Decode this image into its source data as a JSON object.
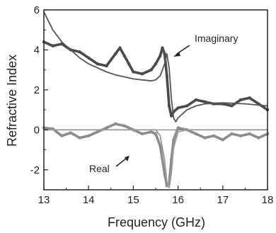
{
  "chart_data": {
    "type": "line",
    "xlabel": "Frequency (GHz)",
    "ylabel": "Refractive Index",
    "xlim": [
      13,
      18
    ],
    "ylim": [
      -3,
      6
    ],
    "xticks": [
      "13",
      "14",
      "15",
      "16",
      "17",
      "18"
    ],
    "yticks": [
      "-2",
      "0",
      "2",
      "4",
      "6"
    ],
    "grid": false,
    "annotations": [
      "Imaginary",
      "Real"
    ],
    "series": [
      {
        "color": "#4a4a4a",
        "style": "thick-dotted",
        "points": [
          [
            13.0,
            4.4
          ],
          [
            13.2,
            4.2
          ],
          [
            13.4,
            4.3
          ],
          [
            13.6,
            4.0
          ],
          [
            13.8,
            3.9
          ],
          [
            14.0,
            3.6
          ],
          [
            14.2,
            3.3
          ],
          [
            14.4,
            3.2
          ],
          [
            14.6,
            3.8
          ],
          [
            14.7,
            4.1
          ],
          [
            14.8,
            3.7
          ],
          [
            14.9,
            3.3
          ],
          [
            15.0,
            2.9
          ],
          [
            15.2,
            2.8
          ],
          [
            15.4,
            3.0
          ],
          [
            15.5,
            3.3
          ],
          [
            15.6,
            3.7
          ],
          [
            15.65,
            4.1
          ],
          [
            15.7,
            3.8
          ],
          [
            15.75,
            2.7
          ],
          [
            15.8,
            1.2
          ],
          [
            15.85,
            0.7
          ],
          [
            15.9,
            0.9
          ],
          [
            16.0,
            1.1
          ],
          [
            16.2,
            1.2
          ],
          [
            16.4,
            1.5
          ],
          [
            16.6,
            1.4
          ],
          [
            16.8,
            1.3
          ],
          [
            17.0,
            1.3
          ],
          [
            17.2,
            1.2
          ],
          [
            17.4,
            1.5
          ],
          [
            17.6,
            1.6
          ],
          [
            17.8,
            1.3
          ],
          [
            18.0,
            1.0
          ]
        ]
      },
      {
        "color": "#555555",
        "style": "solid",
        "points": [
          [
            13.0,
            5.9
          ],
          [
            13.2,
            5.0
          ],
          [
            13.4,
            4.4
          ],
          [
            13.6,
            4.0
          ],
          [
            13.8,
            3.6
          ],
          [
            14.0,
            3.3
          ],
          [
            14.2,
            3.1
          ],
          [
            14.4,
            2.9
          ],
          [
            14.6,
            2.75
          ],
          [
            14.8,
            2.65
          ],
          [
            15.0,
            2.55
          ],
          [
            15.2,
            2.5
          ],
          [
            15.4,
            2.45
          ],
          [
            15.5,
            2.5
          ],
          [
            15.6,
            2.7
          ],
          [
            15.7,
            3.3
          ],
          [
            15.75,
            3.8
          ],
          [
            15.8,
            3.1
          ],
          [
            15.85,
            1.6
          ],
          [
            15.9,
            0.6
          ],
          [
            15.95,
            0.4
          ],
          [
            16.0,
            0.6
          ],
          [
            16.2,
            1.0
          ],
          [
            16.4,
            1.2
          ],
          [
            16.6,
            1.3
          ],
          [
            17.0,
            1.35
          ],
          [
            17.5,
            1.3
          ],
          [
            18.0,
            1.2
          ]
        ]
      },
      {
        "color": "#8c8c8c",
        "style": "thick-dotted",
        "points": [
          [
            13.0,
            0.1
          ],
          [
            13.2,
            0.05
          ],
          [
            13.4,
            -0.3
          ],
          [
            13.6,
            -0.15
          ],
          [
            13.8,
            -0.4
          ],
          [
            14.0,
            -0.3
          ],
          [
            14.2,
            -0.1
          ],
          [
            14.4,
            0.1
          ],
          [
            14.6,
            0.3
          ],
          [
            14.8,
            0.2
          ],
          [
            15.0,
            0.0
          ],
          [
            15.2,
            -0.2
          ],
          [
            15.4,
            -0.1
          ],
          [
            15.5,
            -0.2
          ],
          [
            15.6,
            -0.8
          ],
          [
            15.7,
            -2.2
          ],
          [
            15.75,
            -2.8
          ],
          [
            15.8,
            -2.7
          ],
          [
            15.85,
            -1.5
          ],
          [
            15.9,
            -0.5
          ],
          [
            16.0,
            0.1
          ],
          [
            16.2,
            0.0
          ],
          [
            16.4,
            -0.2
          ],
          [
            16.6,
            -0.4
          ],
          [
            16.8,
            -0.3
          ],
          [
            17.0,
            -0.5
          ],
          [
            17.2,
            -0.2
          ],
          [
            17.4,
            -0.3
          ],
          [
            17.6,
            -0.2
          ],
          [
            17.8,
            -0.4
          ],
          [
            18.0,
            -0.2
          ]
        ]
      },
      {
        "color": "#9a9a9a",
        "style": "solid",
        "points": [
          [
            13.0,
            0.0
          ],
          [
            15.5,
            0.0
          ],
          [
            15.6,
            -0.3
          ],
          [
            15.7,
            -1.5
          ],
          [
            15.75,
            -2.6
          ],
          [
            15.8,
            -2.9
          ],
          [
            15.85,
            -2.2
          ],
          [
            15.9,
            -0.9
          ],
          [
            16.0,
            -0.1
          ],
          [
            16.2,
            0.0
          ],
          [
            18.0,
            0.0
          ]
        ]
      }
    ]
  }
}
